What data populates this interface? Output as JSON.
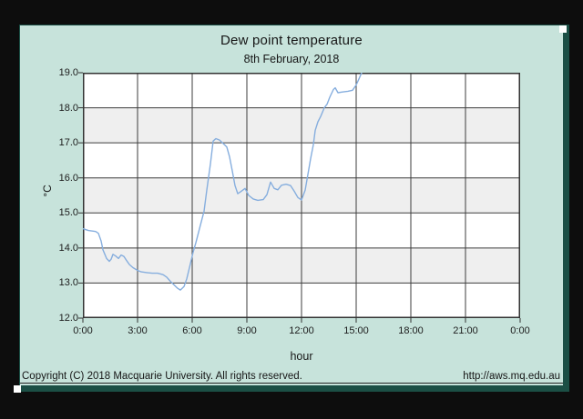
{
  "window": {
    "background_color": "#0d0d0d",
    "card_color": "#c7e3db",
    "card_border_color": "#1b4f45"
  },
  "chart_data": {
    "type": "line",
    "title": "Dew point temperature",
    "subtitle": "8th February, 2018",
    "xlabel": "hour",
    "ylabel": "°C",
    "xlim": [
      0,
      24
    ],
    "ylim": [
      12.0,
      19.0
    ],
    "grid": true,
    "grid_color": "#3d3d3d",
    "border_color": "#333333",
    "plot_band_colors": [
      "#ffffff",
      "#efefef"
    ],
    "line_color": "#86aede",
    "xticks": [
      {
        "t": 0,
        "label": "0:00"
      },
      {
        "t": 3,
        "label": "3:00"
      },
      {
        "t": 6,
        "label": "6:00"
      },
      {
        "t": 9,
        "label": "9:00"
      },
      {
        "t": 12,
        "label": "12:00"
      },
      {
        "t": 15,
        "label": "15:00"
      },
      {
        "t": 18,
        "label": "18:00"
      },
      {
        "t": 21,
        "label": "21:00"
      },
      {
        "t": 24,
        "label": "0:00"
      }
    ],
    "yticks": [
      {
        "v": 12,
        "label": "12.0"
      },
      {
        "v": 13,
        "label": "13.0"
      },
      {
        "v": 14,
        "label": "14.0"
      },
      {
        "v": 15,
        "label": "15.0"
      },
      {
        "v": 16,
        "label": "16.0"
      },
      {
        "v": 17,
        "label": "17.0"
      },
      {
        "v": 18,
        "label": "18.0"
      },
      {
        "v": 19,
        "label": "19.0"
      }
    ],
    "series": [
      {
        "name": "dew_point_temperature_C",
        "points": [
          [
            0.0,
            14.55
          ],
          [
            0.3,
            14.5
          ],
          [
            0.7,
            14.47
          ],
          [
            0.85,
            14.42
          ],
          [
            1.0,
            14.2
          ],
          [
            1.1,
            13.95
          ],
          [
            1.3,
            13.7
          ],
          [
            1.45,
            13.62
          ],
          [
            1.55,
            13.68
          ],
          [
            1.65,
            13.82
          ],
          [
            1.8,
            13.77
          ],
          [
            1.95,
            13.7
          ],
          [
            2.1,
            13.8
          ],
          [
            2.25,
            13.76
          ],
          [
            2.4,
            13.64
          ],
          [
            2.55,
            13.53
          ],
          [
            2.75,
            13.44
          ],
          [
            3.0,
            13.36
          ],
          [
            3.2,
            13.32
          ],
          [
            3.5,
            13.3
          ],
          [
            3.8,
            13.28
          ],
          [
            4.1,
            13.28
          ],
          [
            4.4,
            13.24
          ],
          [
            4.6,
            13.17
          ],
          [
            4.8,
            13.05
          ],
          [
            5.0,
            12.95
          ],
          [
            5.2,
            12.85
          ],
          [
            5.35,
            12.8
          ],
          [
            5.55,
            12.9
          ],
          [
            5.7,
            13.12
          ],
          [
            5.9,
            13.55
          ],
          [
            6.05,
            13.88
          ],
          [
            6.2,
            14.15
          ],
          [
            6.4,
            14.55
          ],
          [
            6.65,
            15.05
          ],
          [
            6.8,
            15.65
          ],
          [
            7.0,
            16.4
          ],
          [
            7.15,
            17.05
          ],
          [
            7.3,
            17.12
          ],
          [
            7.5,
            17.08
          ],
          [
            7.7,
            16.98
          ],
          [
            7.9,
            16.88
          ],
          [
            8.05,
            16.6
          ],
          [
            8.2,
            16.2
          ],
          [
            8.35,
            15.78
          ],
          [
            8.5,
            15.55
          ],
          [
            8.65,
            15.6
          ],
          [
            8.9,
            15.7
          ],
          [
            9.1,
            15.5
          ],
          [
            9.35,
            15.4
          ],
          [
            9.6,
            15.36
          ],
          [
            9.9,
            15.38
          ],
          [
            10.1,
            15.52
          ],
          [
            10.3,
            15.88
          ],
          [
            10.5,
            15.7
          ],
          [
            10.7,
            15.66
          ],
          [
            10.9,
            15.79
          ],
          [
            11.15,
            15.82
          ],
          [
            11.4,
            15.78
          ],
          [
            11.6,
            15.62
          ],
          [
            11.8,
            15.44
          ],
          [
            12.0,
            15.37
          ],
          [
            12.2,
            15.65
          ],
          [
            12.35,
            16.1
          ],
          [
            12.5,
            16.55
          ],
          [
            12.65,
            16.95
          ],
          [
            12.75,
            17.35
          ],
          [
            12.9,
            17.6
          ],
          [
            13.05,
            17.75
          ],
          [
            13.25,
            18.0
          ],
          [
            13.4,
            18.1
          ],
          [
            13.55,
            18.3
          ],
          [
            13.75,
            18.52
          ],
          [
            13.85,
            18.57
          ],
          [
            14.0,
            18.43
          ],
          [
            14.25,
            18.45
          ],
          [
            14.55,
            18.47
          ],
          [
            14.8,
            18.5
          ],
          [
            15.0,
            18.65
          ],
          [
            15.15,
            18.82
          ],
          [
            15.3,
            19.0
          ],
          [
            15.4,
            19.08
          ]
        ]
      }
    ]
  },
  "footer": {
    "copyright": "Copyright (C) 2018 Macquarie University. All rights reserved.",
    "url": "http://aws.mq.edu.au"
  }
}
